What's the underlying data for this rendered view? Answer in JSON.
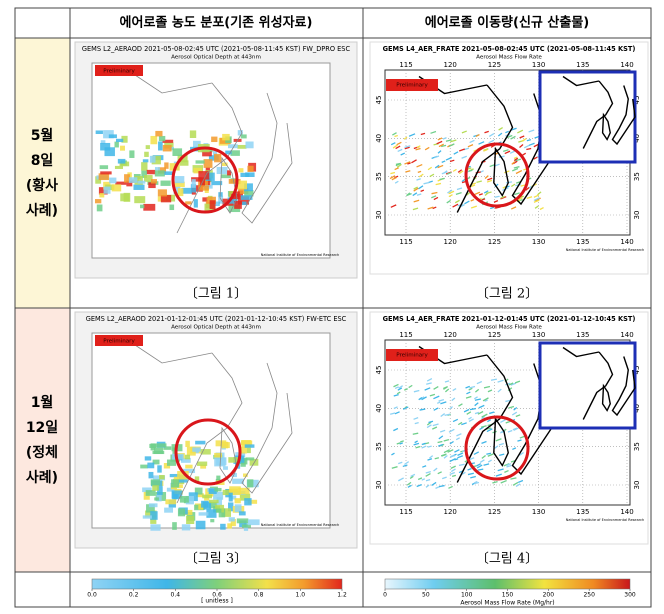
{
  "header": {
    "columns": [
      "에어로졸 농도 분포(기존 위성자료)",
      "에어로졸 이동량(신규 산출물)"
    ]
  },
  "rows": [
    {
      "label": [
        "5월",
        "8일",
        "(황사",
        "사례)"
      ],
      "left": {
        "title": "GEMS L2_AERAOD 2021-05-08-02:45 UTC (2021-05-08-11:45 KST) FW_DPRO ESC",
        "subtitle": "Aerosol Optical Depth at 443nm",
        "badge": "Preliminary",
        "caption": "〔그림 1〕"
      },
      "right": {
        "title": "GEMS L4_AER_FRATE 2021-05-08-02:45 UTC (2021-05-08-11:45 KST)",
        "subtitle": "Aerosol Mass Flow Rate",
        "badge": "Preliminary",
        "caption": "〔그림 2〕"
      }
    },
    {
      "label": [
        "1월",
        "12일",
        "(정체",
        "사례)"
      ],
      "left": {
        "title": "GEMS L2_AERAOD 2021-01-12-01:45 UTC (2021-01-12-10:45 KST) FW-ETC ESC",
        "subtitle": "Aerosol Optical Depth at 443nm",
        "badge": "Preliminary",
        "caption": "〔그림 3〕"
      },
      "right": {
        "title": "GEMS L4_AER_FRATE 2021-01-12-01:45 UTC (2021-01-12-10:45 KST)",
        "subtitle": "Aerosol Mass Flow Rate",
        "badge": "Preliminary",
        "caption": "〔그림 4〕"
      }
    }
  ],
  "institute": "National Institute of Environmental Research",
  "right_map_axes": {
    "lon": [
      115,
      120,
      125,
      130,
      135,
      140
    ],
    "lat": [
      45,
      40,
      35,
      30
    ]
  },
  "colorbars": [
    {
      "label": "[ unitless ]",
      "lim": [
        0,
        1.2
      ],
      "ticks": [
        {
          "value": 0,
          "label": "0.0"
        },
        {
          "value": 0.2,
          "label": "0.2"
        },
        {
          "value": 0.4,
          "label": "0.4"
        },
        {
          "value": 0.6,
          "label": "0.6"
        },
        {
          "value": 0.8,
          "label": "0.8"
        },
        {
          "value": 1,
          "label": "1.0"
        },
        {
          "value": 1.2,
          "label": "1.2"
        }
      ]
    },
    {
      "label": "Aerosol Mass Flow Rate (Mg/hr)",
      "lim": [
        0,
        300
      ],
      "ticks": [
        0,
        50,
        100,
        150,
        200,
        250,
        300
      ]
    }
  ]
}
